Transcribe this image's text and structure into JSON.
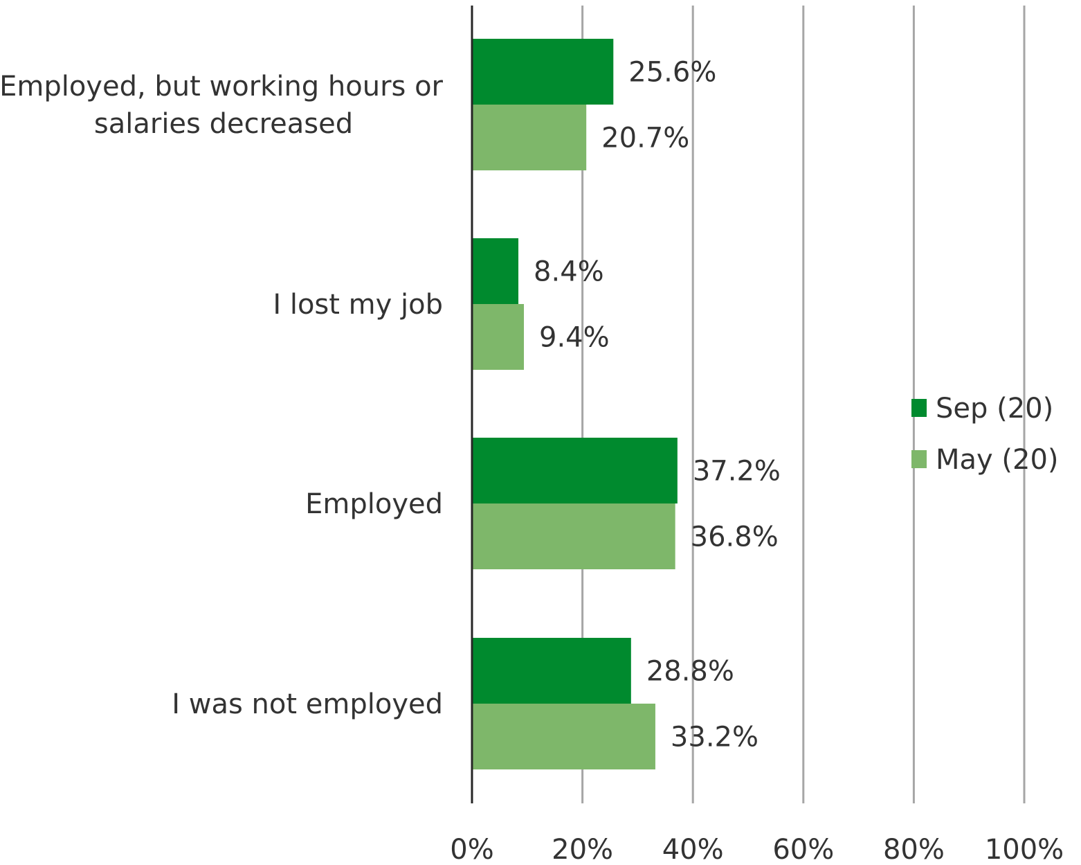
{
  "chart_data": {
    "type": "bar",
    "orientation": "horizontal",
    "categories": [
      [
        "Employed, but working hours or",
        "salaries decreased"
      ],
      [
        "I lost my job"
      ],
      [
        "Employed"
      ],
      [
        "I was not employed"
      ]
    ],
    "series": [
      {
        "name": "Sep (20)",
        "color": "#008a2e",
        "values": [
          25.6,
          8.4,
          37.2,
          28.8
        ],
        "labels": [
          "25.6%",
          "8.4%",
          "37.2%",
          "28.8%"
        ]
      },
      {
        "name": "May (20)",
        "color": "#7eb76a",
        "values": [
          20.7,
          9.4,
          36.8,
          33.2
        ],
        "labels": [
          "20.7%",
          "9.4%",
          "36.8%",
          "33.2%"
        ]
      }
    ],
    "xlim": [
      0,
      100
    ],
    "ticks": [
      0,
      20,
      40,
      60,
      80,
      100
    ],
    "tick_labels": [
      "0%",
      "20%",
      "40%",
      "60%",
      "80%",
      "100%"
    ],
    "grid": true,
    "legend_position": "right"
  }
}
